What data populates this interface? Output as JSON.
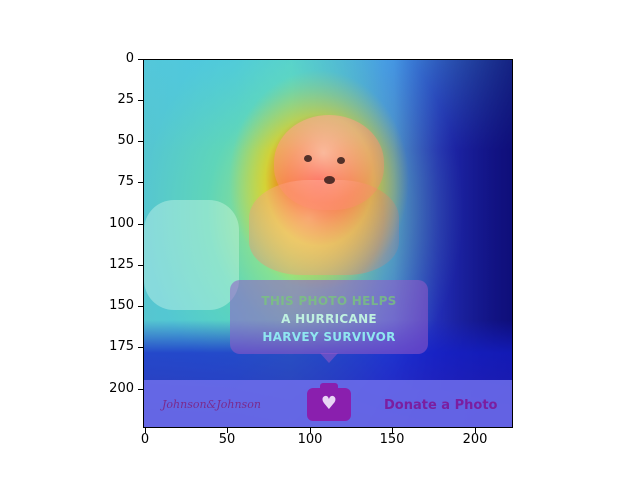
{
  "image": {
    "bubble_lines": [
      "THIS PHOTO HELPS",
      "A HURRICANE",
      "HARVEY SURVIVOR"
    ],
    "banner_logo": "Johnson&Johnson",
    "banner_cta": "Donate a Photo",
    "camera_icon": "camera-heart-icon"
  },
  "axes": {
    "y_ticks": [
      "0",
      "25",
      "50",
      "75",
      "100",
      "125",
      "150",
      "175",
      "200"
    ],
    "x_ticks": [
      "0",
      "50",
      "100",
      "150",
      "200"
    ]
  },
  "colors": {
    "heat_hot": "#ff0000",
    "heat_cool": "#1a1a9a",
    "banner": "#6e6eeb",
    "cta": "#7b1ea0"
  }
}
